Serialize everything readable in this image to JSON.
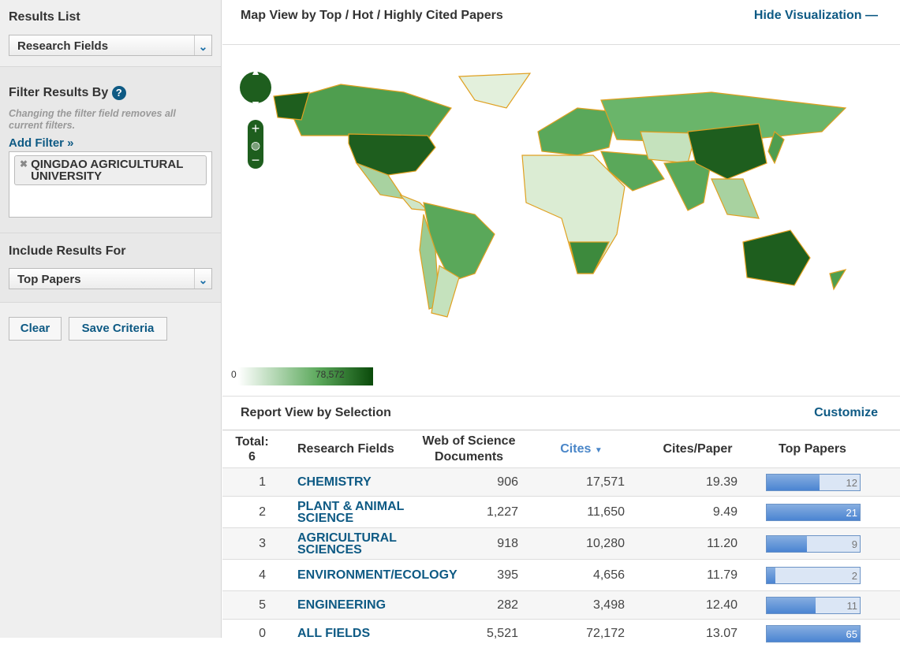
{
  "sidebar": {
    "results_list_heading": "Results List",
    "results_list_value": "Research Fields",
    "filter_heading": "Filter Results By",
    "filter_note": "Changing the filter field removes all current filters.",
    "add_filter": "Add Filter »",
    "filter_tag": "QINGDAO AGRICULTURAL UNIVERSITY",
    "include_heading": "Include Results For",
    "include_value": "Top Papers",
    "clear": "Clear",
    "save": "Save Criteria"
  },
  "map": {
    "title": "Map View by Top / Hot / Highly Cited Papers",
    "hide": "Hide Visualization",
    "legend_min": "0",
    "legend_max": "78,572",
    "colors": {
      "low": "#e8f3e2",
      "mid": "#5aa85a",
      "high": "#1e5e1e",
      "border": "#e0a020"
    }
  },
  "report": {
    "title": "Report View by Selection",
    "customize": "Customize",
    "headers": {
      "total": "Total:",
      "total_count": "6",
      "field": "Research Fields",
      "docs": "Web of Science Documents",
      "cites": "Cites",
      "cpp": "Cites/Paper",
      "top": "Top Papers"
    },
    "rows": [
      {
        "rank": "1",
        "field": "CHEMISTRY",
        "docs": "906",
        "cites": "17,571",
        "cpp": "19.39",
        "top": 12
      },
      {
        "rank": "2",
        "field": "PLANT & ANIMAL SCIENCE",
        "docs": "1,227",
        "cites": "11,650",
        "cpp": "9.49",
        "top": 21
      },
      {
        "rank": "3",
        "field": "AGRICULTURAL SCIENCES",
        "docs": "918",
        "cites": "10,280",
        "cpp": "11.20",
        "top": 9
      },
      {
        "rank": "4",
        "field": "ENVIRONMENT/ECOLOGY",
        "docs": "395",
        "cites": "4,656",
        "cpp": "11.79",
        "top": 2
      },
      {
        "rank": "5",
        "field": "ENGINEERING",
        "docs": "282",
        "cites": "3,498",
        "cpp": "12.40",
        "top": 11
      },
      {
        "rank": "0",
        "field": "ALL FIELDS",
        "docs": "5,521",
        "cites": "72,172",
        "cpp": "13.07",
        "top": 65
      }
    ]
  }
}
